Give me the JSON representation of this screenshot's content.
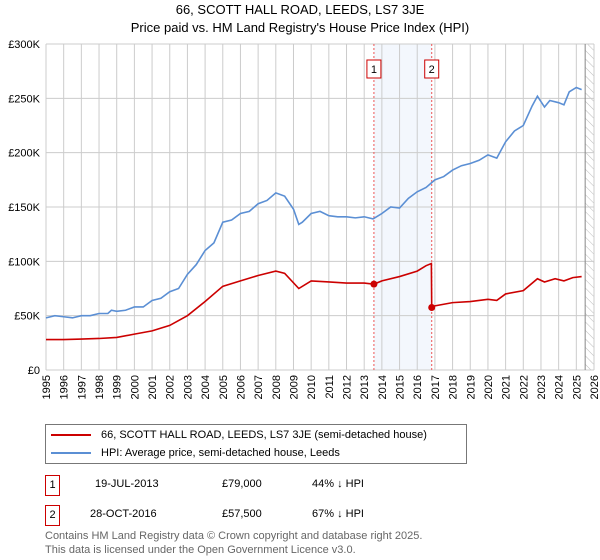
{
  "chart_data": {
    "type": "line",
    "title": "66, SCOTT HALL ROAD, LEEDS, LS7 3JE",
    "subtitle": "Price paid vs. HM Land Registry's House Price Index (HPI)",
    "xlim": [
      1995,
      2026
    ],
    "ylim": [
      0,
      300000
    ],
    "yticks": [
      0,
      50000,
      100000,
      150000,
      200000,
      250000,
      300000
    ],
    "ytick_labels": [
      "£0",
      "£50K",
      "£100K",
      "£150K",
      "£200K",
      "£250K",
      "£300K"
    ],
    "xtick_labels": [
      "1995",
      "1996",
      "1997",
      "1998",
      "1999",
      "2000",
      "2001",
      "2002",
      "2003",
      "2004",
      "2005",
      "2006",
      "2007",
      "2008",
      "2009",
      "2010",
      "2011",
      "2012",
      "2013",
      "2014",
      "2015",
      "2016",
      "2017",
      "2018",
      "2019",
      "2020",
      "2021",
      "2022",
      "2023",
      "2024",
      "2025",
      "2026"
    ],
    "grid": true,
    "forecast_start": 2025.5,
    "series": [
      {
        "name": "66, SCOTT HALL ROAD, LEEDS, LS7 3JE (semi-detached house)",
        "color": "#cc0000",
        "x": [
          1995,
          1996,
          1997,
          1998,
          1999,
          2000,
          2001,
          2002,
          2003,
          2004,
          2005,
          2006,
          2007,
          2008,
          2008.5,
          2009.3,
          2010,
          2011,
          2012,
          2013,
          2013.55,
          2014,
          2015,
          2016,
          2016.5,
          2016.8,
          2016.82,
          2017,
          2018,
          2019,
          2020,
          2020.5,
          2021,
          2022,
          2022.8,
          2023.2,
          2023.8,
          2024.3,
          2024.8,
          2025.3
        ],
        "values": [
          28000,
          28000,
          28500,
          29000,
          30000,
          33000,
          36000,
          41000,
          50000,
          63000,
          77000,
          82000,
          87000,
          91000,
          89000,
          75000,
          82000,
          81000,
          80000,
          80000,
          79000,
          82000,
          86000,
          91000,
          96000,
          98000,
          57500,
          59000,
          62000,
          63000,
          65000,
          64000,
          70000,
          73000,
          84000,
          81000,
          84000,
          82000,
          85000,
          86000
        ]
      },
      {
        "name": "HPI: Average price, semi-detached house, Leeds",
        "color": "#5b8fd4",
        "x": [
          1995,
          1995.5,
          1996,
          1996.5,
          1997,
          1997.5,
          1998,
          1998.5,
          1998.7,
          1999,
          1999.5,
          2000,
          2000.5,
          2001,
          2001.5,
          2002,
          2002.5,
          2003,
          2003.5,
          2004,
          2004.5,
          2005,
          2005.5,
          2006,
          2006.5,
          2007,
          2007.5,
          2008,
          2008.5,
          2009,
          2009.3,
          2009.5,
          2010,
          2010.5,
          2011,
          2011.5,
          2012,
          2012.5,
          2013,
          2013.5,
          2014,
          2014.5,
          2015,
          2015.5,
          2016,
          2016.5,
          2017,
          2017.5,
          2018,
          2018.5,
          2019,
          2019.5,
          2020,
          2020.5,
          2021,
          2021.5,
          2022,
          2022.5,
          2022.8,
          2023.2,
          2023.5,
          2024,
          2024.3,
          2024.6,
          2025,
          2025.3
        ],
        "values": [
          48000,
          50000,
          49000,
          48000,
          50000,
          50000,
          52000,
          52000,
          55000,
          54000,
          55000,
          58000,
          58000,
          64000,
          66000,
          72000,
          75000,
          88000,
          97000,
          110000,
          117000,
          136000,
          138000,
          144000,
          146000,
          153000,
          156000,
          163000,
          160000,
          148000,
          134000,
          136000,
          144000,
          146000,
          142000,
          141000,
          141000,
          140000,
          141000,
          139000,
          144000,
          150000,
          149000,
          158000,
          164000,
          168000,
          175000,
          178000,
          184000,
          188000,
          190000,
          193000,
          198000,
          195000,
          210000,
          220000,
          225000,
          243000,
          252000,
          242000,
          248000,
          246000,
          244000,
          256000,
          260000,
          258000
        ]
      }
    ],
    "annotations": [
      {
        "label": "1",
        "x": 2013.55,
        "date": "19-JUL-2013",
        "price": "£79,000",
        "value": 79000,
        "hpi_note": "44% ↓ HPI"
      },
      {
        "label": "2",
        "x": 2016.82,
        "date": "28-OCT-2016",
        "price": "£57,500",
        "value": 57500,
        "hpi_note": "67% ↓ HPI"
      }
    ]
  },
  "footer": {
    "line1": "Contains HM Land Registry data © Crown copyright and database right 2025.",
    "line2": "This data is licensed under the Open Government Licence v3.0."
  }
}
